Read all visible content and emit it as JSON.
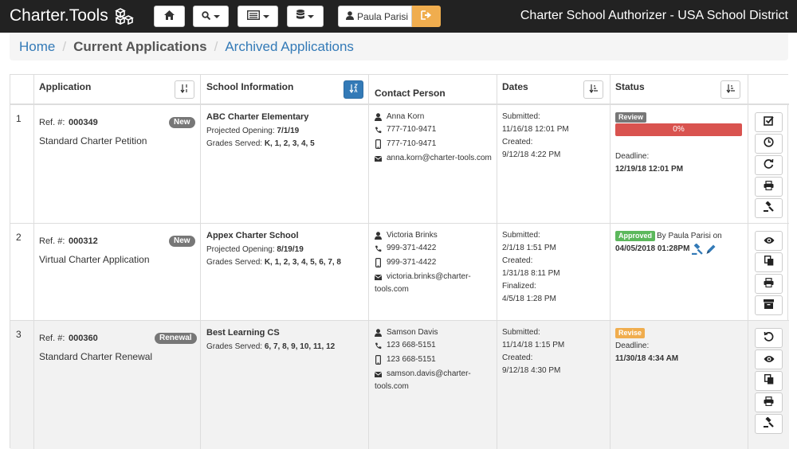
{
  "brand": "Charter.Tools",
  "app_title": "Charter School Authorizer - USA School District",
  "user": {
    "name": "Paula Parisi"
  },
  "breadcrumb": {
    "home": "Home",
    "current": "Current Applications",
    "archived": "Archived Applications"
  },
  "columns": {
    "application": "Application",
    "school": "School Information",
    "contact": "Contact Person",
    "dates": "Dates",
    "status": "Status"
  },
  "rows": [
    {
      "num": "1",
      "ref_label": "Ref. #:",
      "ref": "000349",
      "badge": "New",
      "app_type": "Standard Charter Petition",
      "school": "ABC Charter Elementary",
      "opening_label": "Projected Opening:",
      "opening": "7/1/19",
      "grades_label": "Grades Served:",
      "grades": "K, 1, 2, 3, 4, 5",
      "contact_name": "Anna Korn",
      "phone": "777-710-9471",
      "mobile": "777-710-9471",
      "email": "anna.korn@charter-tools.com",
      "submitted_label": "Submitted:",
      "submitted": "11/16/18 12:01 PM",
      "created_label": "Created:",
      "created": "9/12/18 4:22 PM",
      "status_label": "Review",
      "progress": "0%",
      "deadline_label": "Deadline:",
      "deadline": "12/19/18 12:01 PM"
    },
    {
      "num": "2",
      "ref_label": "Ref. #:",
      "ref": "000312",
      "badge": "New",
      "app_type": "Virtual Charter Application",
      "school": "Appex Charter School",
      "opening_label": "Projected Opening:",
      "opening": "8/19/19",
      "grades_label": "Grades Served:",
      "grades": "K, 1, 2, 3, 4, 5, 6, 7, 8",
      "contact_name": "Victoria Brinks",
      "phone": "999-371-4422",
      "mobile": "999-371-4422",
      "email_1": "victoria.brinks@charter-",
      "email_2": "tools.com",
      "submitted_label": "Submitted:",
      "submitted": "2/1/18 1:51 PM",
      "created_label": "Created:",
      "created": "1/31/18 8:11 PM",
      "finalized_label": "Finalized:",
      "finalized": "4/5/18 1:28 PM",
      "status_label": "Approved",
      "by": "By Paula Parisi on",
      "status_date": "04/05/2018 01:28PM"
    },
    {
      "num": "3",
      "ref_label": "Ref. #:",
      "ref": "000360",
      "badge": "Renewal",
      "app_type": "Standard Charter Renewal",
      "school": "Best Learning CS",
      "grades_label": "Grades Served:",
      "grades": "6, 7, 8, 9, 10, 11, 12",
      "contact_name": "Samson Davis",
      "phone": "123 668-5151",
      "mobile": "123 668-5151",
      "email_1": "samson.davis@charter-",
      "email_2": "tools.com",
      "submitted_label": "Submitted:",
      "submitted": "11/14/18 1:15 PM",
      "created_label": "Created:",
      "created": "9/12/18 4:30 PM",
      "status_label": "Revise",
      "deadline_label": "Deadline:",
      "deadline": "11/30/18 4:34 AM"
    }
  ],
  "colors": {
    "primary": "#337ab7",
    "danger": "#d9534f",
    "success": "#5cb85c",
    "warning": "#f0ad4e",
    "default": "#777777"
  }
}
